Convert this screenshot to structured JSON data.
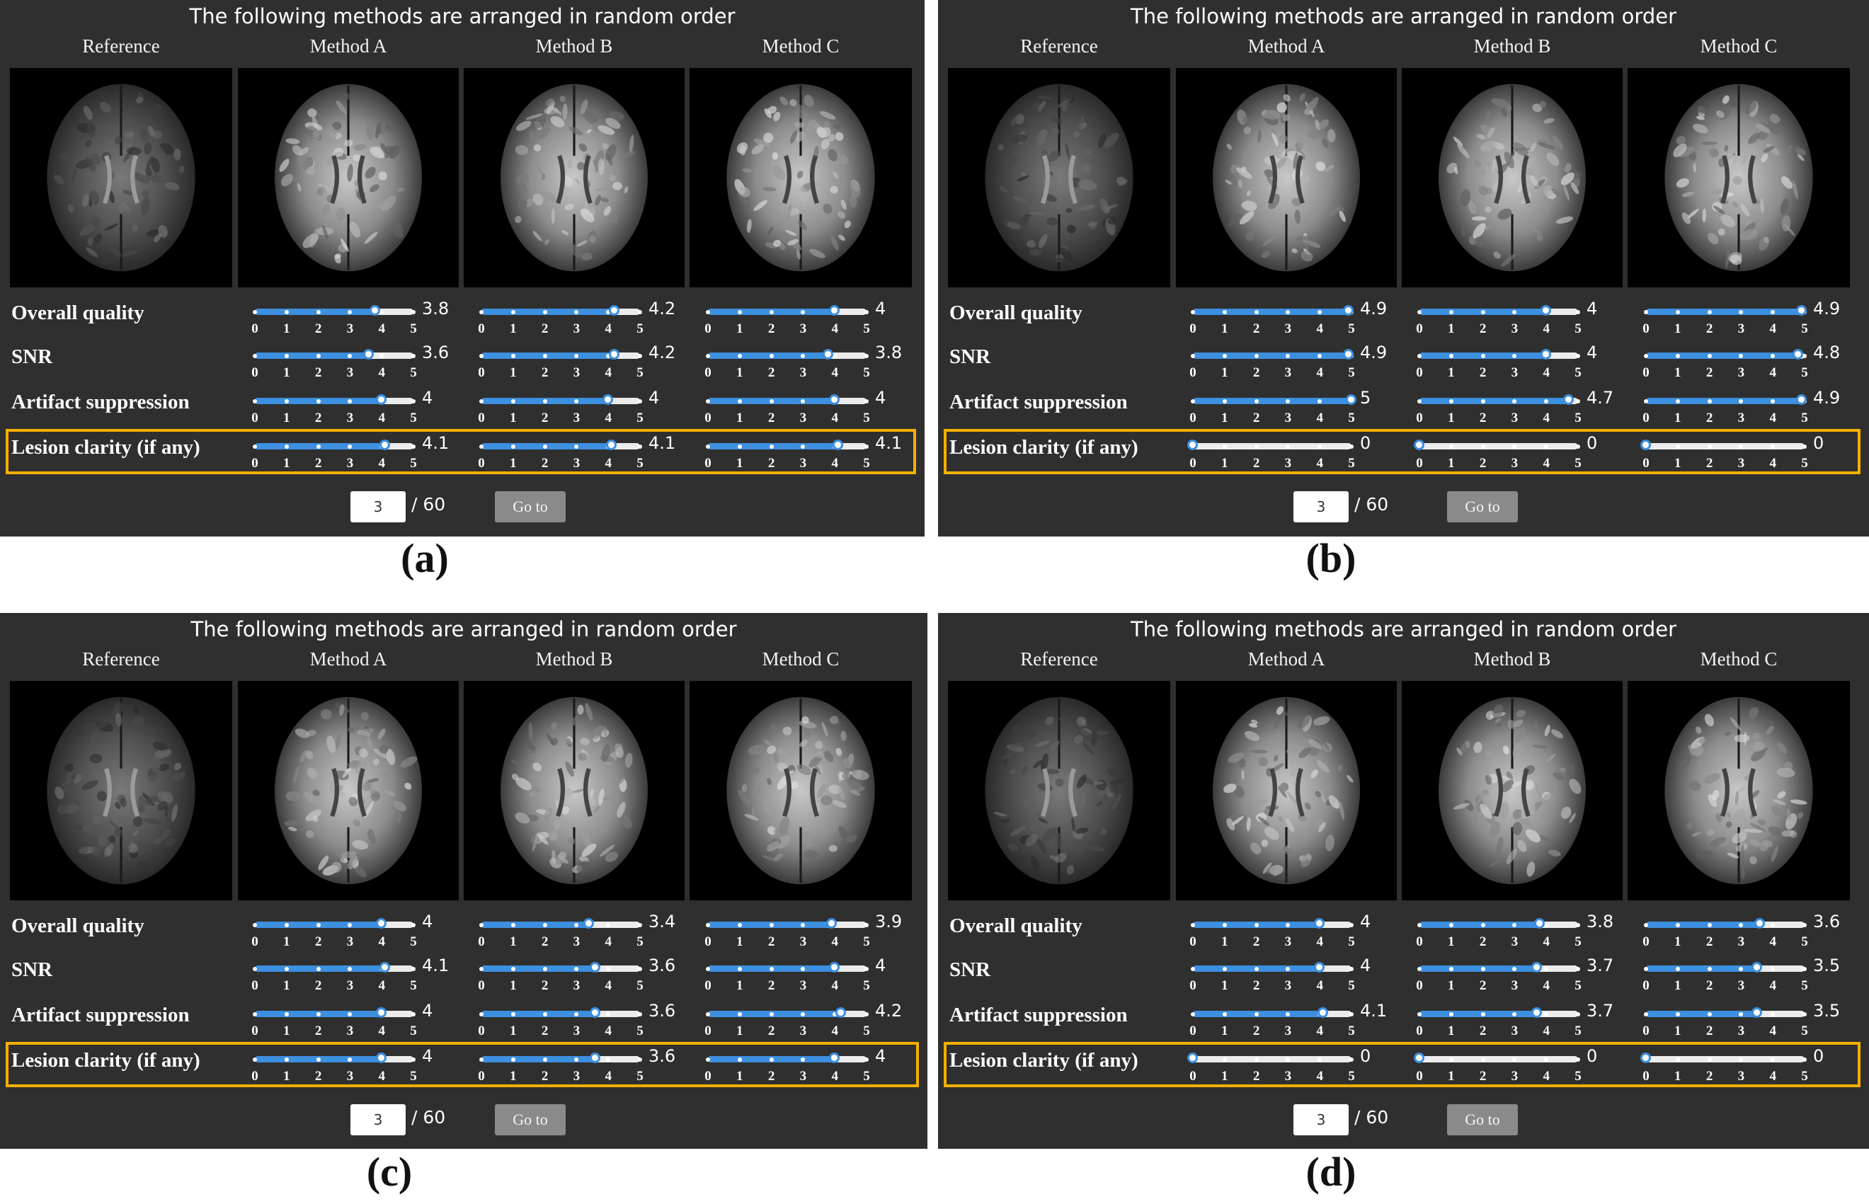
{
  "panels": [
    {
      "id": "a",
      "caption": "(a)",
      "title": "The following methods are arranged in random order",
      "columns": [
        "Reference",
        "Method A",
        "Method B",
        "Method C"
      ],
      "metrics": [
        {
          "label": "Overall quality",
          "values": [
            3.8,
            4.2,
            4
          ],
          "value_labels": [
            "3.8",
            "4.2",
            "4"
          ]
        },
        {
          "label": "SNR",
          "values": [
            3.6,
            4.2,
            3.8
          ],
          "value_labels": [
            "3.6",
            "4.2",
            "3.8"
          ]
        },
        {
          "label": "Artifact suppression",
          "values": [
            4,
            4,
            4
          ],
          "value_labels": [
            "4",
            "4",
            "4"
          ]
        },
        {
          "label": "Lesion clarity (if any)",
          "values": [
            4.1,
            4.1,
            4.1
          ],
          "value_labels": [
            "4.1",
            "4.1",
            "4.1"
          ]
        }
      ],
      "tick_labels": [
        "0",
        "1",
        "2",
        "3",
        "4",
        "5"
      ],
      "page_input_value": "3",
      "page_total": "/ 60",
      "goto_label": "Go to"
    },
    {
      "id": "b",
      "caption": "(b)",
      "title": "The following methods are arranged in random order",
      "columns": [
        "Reference",
        "Method A",
        "Method B",
        "Method C"
      ],
      "metrics": [
        {
          "label": "Overall quality",
          "values": [
            4.9,
            4,
            4.9
          ],
          "value_labels": [
            "4.9",
            "4",
            "4.9"
          ]
        },
        {
          "label": "SNR",
          "values": [
            4.9,
            4,
            4.8
          ],
          "value_labels": [
            "4.9",
            "4",
            "4.8"
          ]
        },
        {
          "label": "Artifact suppression",
          "values": [
            5,
            4.7,
            4.9
          ],
          "value_labels": [
            "5",
            "4.7",
            "4.9"
          ]
        },
        {
          "label": "Lesion clarity (if any)",
          "values": [
            0,
            0,
            0
          ],
          "value_labels": [
            "0",
            "0",
            "0"
          ]
        }
      ],
      "tick_labels": [
        "0",
        "1",
        "2",
        "3",
        "4",
        "5"
      ],
      "page_input_value": "3",
      "page_total": "/ 60",
      "goto_label": "Go to"
    },
    {
      "id": "c",
      "caption": "(c)",
      "title": "The following methods are arranged in random order",
      "columns": [
        "Reference",
        "Method A",
        "Method B",
        "Method C"
      ],
      "metrics": [
        {
          "label": "Overall quality",
          "values": [
            4,
            3.4,
            3.9
          ],
          "value_labels": [
            "4",
            "3.4",
            "3.9"
          ]
        },
        {
          "label": "SNR",
          "values": [
            4.1,
            3.6,
            4
          ],
          "value_labels": [
            "4.1",
            "3.6",
            "4"
          ]
        },
        {
          "label": "Artifact suppression",
          "values": [
            4,
            3.6,
            4.2
          ],
          "value_labels": [
            "4",
            "3.6",
            "4.2"
          ]
        },
        {
          "label": "Lesion clarity (if any)",
          "values": [
            4,
            3.6,
            4
          ],
          "value_labels": [
            "4",
            "3.6",
            "4"
          ]
        }
      ],
      "tick_labels": [
        "0",
        "1",
        "2",
        "3",
        "4",
        "5"
      ],
      "page_input_value": "3",
      "page_total": "/ 60",
      "goto_label": "Go to"
    },
    {
      "id": "d",
      "caption": "(d)",
      "title": "The following methods are arranged in random order",
      "columns": [
        "Reference",
        "Method A",
        "Method B",
        "Method C"
      ],
      "metrics": [
        {
          "label": "Overall quality",
          "values": [
            4,
            3.8,
            3.6
          ],
          "value_labels": [
            "4",
            "3.8",
            "3.6"
          ]
        },
        {
          "label": "SNR",
          "values": [
            4,
            3.7,
            3.5
          ],
          "value_labels": [
            "4",
            "3.7",
            "3.5"
          ]
        },
        {
          "label": "Artifact suppression",
          "values": [
            4.1,
            3.7,
            3.5
          ],
          "value_labels": [
            "4.1",
            "3.7",
            "3.5"
          ]
        },
        {
          "label": "Lesion clarity (if any)",
          "values": [
            0,
            0,
            0
          ],
          "value_labels": [
            "0",
            "0",
            "0"
          ]
        }
      ],
      "tick_labels": [
        "0",
        "1",
        "2",
        "3",
        "4",
        "5"
      ],
      "page_input_value": "3",
      "page_total": "/ 60",
      "goto_label": "Go to"
    }
  ],
  "colors": {
    "panel_bg": "#2f2f2f",
    "slider_fill": "#3d8fe0",
    "slider_track": "#ececec",
    "lesion_highlight": "#f4b000",
    "goto_button": "#8a8a8a"
  },
  "slider_max": 5
}
